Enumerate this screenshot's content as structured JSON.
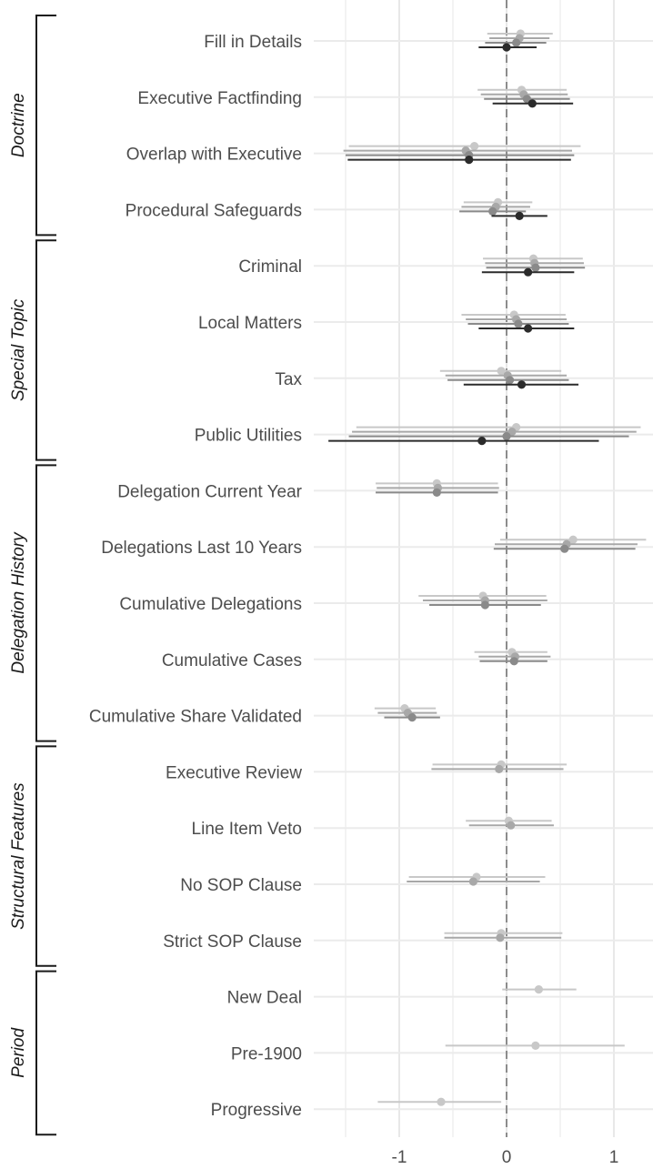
{
  "chart_data": {
    "type": "scatter",
    "subtype": "coefficient-plot",
    "title": "",
    "xlabel": "",
    "ylabel": "",
    "xlim": [
      -1.8,
      1.35
    ],
    "x_ticks": [
      -1,
      0,
      1
    ],
    "x_tick_labels": [
      "-1",
      "0",
      "1"
    ],
    "reference_line": 0,
    "grid": true,
    "legend": "none",
    "shade_colors": [
      "#c8c8c8",
      "#a8a8a8",
      "#8a8a8a",
      "#2b2b2b"
    ],
    "groups": [
      {
        "name": "Doctrine",
        "rows": [
          {
            "label": "Fill in Details",
            "estimates": [
              {
                "shade": 0,
                "value": 0.13,
                "low": -0.18,
                "high": 0.43
              },
              {
                "shade": 1,
                "value": 0.12,
                "low": -0.16,
                "high": 0.4
              },
              {
                "shade": 2,
                "value": 0.09,
                "low": -0.2,
                "high": 0.37
              },
              {
                "shade": 3,
                "value": 0.0,
                "low": -0.26,
                "high": 0.28
              }
            ]
          },
          {
            "label": "Executive Factfinding",
            "estimates": [
              {
                "shade": 0,
                "value": 0.14,
                "low": -0.27,
                "high": 0.56
              },
              {
                "shade": 1,
                "value": 0.16,
                "low": -0.24,
                "high": 0.57
              },
              {
                "shade": 2,
                "value": 0.19,
                "low": -0.21,
                "high": 0.59
              },
              {
                "shade": 3,
                "value": 0.24,
                "low": -0.13,
                "high": 0.62
              }
            ]
          },
          {
            "label": "Overlap with Executive",
            "estimates": [
              {
                "shade": 0,
                "value": -0.3,
                "low": -1.47,
                "high": 0.69
              },
              {
                "shade": 1,
                "value": -0.38,
                "low": -1.52,
                "high": 0.61
              },
              {
                "shade": 2,
                "value": -0.35,
                "low": -1.5,
                "high": 0.63
              },
              {
                "shade": 3,
                "value": -0.35,
                "low": -1.48,
                "high": 0.6
              }
            ]
          },
          {
            "label": "Procedural Safeguards",
            "estimates": [
              {
                "shade": 0,
                "value": -0.08,
                "low": -0.4,
                "high": 0.24
              },
              {
                "shade": 1,
                "value": -0.1,
                "low": -0.42,
                "high": 0.22
              },
              {
                "shade": 2,
                "value": -0.13,
                "low": -0.44,
                "high": 0.18
              },
              {
                "shade": 3,
                "value": 0.12,
                "low": -0.14,
                "high": 0.38
              }
            ]
          }
        ]
      },
      {
        "name": "Special Topic",
        "rows": [
          {
            "label": "Criminal",
            "estimates": [
              {
                "shade": 0,
                "value": 0.25,
                "low": -0.22,
                "high": 0.71
              },
              {
                "shade": 1,
                "value": 0.26,
                "low": -0.2,
                "high": 0.72
              },
              {
                "shade": 2,
                "value": 0.27,
                "low": -0.19,
                "high": 0.73
              },
              {
                "shade": 3,
                "value": 0.2,
                "low": -0.23,
                "high": 0.63
              }
            ]
          },
          {
            "label": "Local Matters",
            "estimates": [
              {
                "shade": 0,
                "value": 0.07,
                "low": -0.42,
                "high": 0.55
              },
              {
                "shade": 1,
                "value": 0.09,
                "low": -0.38,
                "high": 0.56
              },
              {
                "shade": 2,
                "value": 0.11,
                "low": -0.36,
                "high": 0.58
              },
              {
                "shade": 3,
                "value": 0.2,
                "low": -0.26,
                "high": 0.63
              }
            ]
          },
          {
            "label": "Tax",
            "estimates": [
              {
                "shade": 0,
                "value": -0.05,
                "low": -0.62,
                "high": 0.51
              },
              {
                "shade": 1,
                "value": 0.01,
                "low": -0.57,
                "high": 0.56
              },
              {
                "shade": 2,
                "value": 0.03,
                "low": -0.55,
                "high": 0.58
              },
              {
                "shade": 3,
                "value": 0.14,
                "low": -0.4,
                "high": 0.67
              }
            ]
          },
          {
            "label": "Public Utilities",
            "estimates": [
              {
                "shade": 0,
                "value": 0.09,
                "low": -1.4,
                "high": 1.25
              },
              {
                "shade": 1,
                "value": 0.05,
                "low": -1.44,
                "high": 1.21
              },
              {
                "shade": 2,
                "value": 0.0,
                "low": -1.47,
                "high": 1.14
              },
              {
                "shade": 3,
                "value": -0.23,
                "low": -1.66,
                "high": 0.86
              }
            ]
          }
        ]
      },
      {
        "name": "Delegation History",
        "rows": [
          {
            "label": "Delegation Current Year",
            "estimates": [
              {
                "shade": 0,
                "value": -0.65,
                "low": -1.22,
                "high": -0.08
              },
              {
                "shade": 1,
                "value": -0.64,
                "low": -1.21,
                "high": -0.07
              },
              {
                "shade": 2,
                "value": -0.65,
                "low": -1.22,
                "high": -0.08
              }
            ]
          },
          {
            "label": "Delegations Last 10 Years",
            "estimates": [
              {
                "shade": 0,
                "value": 0.62,
                "low": -0.06,
                "high": 1.3
              },
              {
                "shade": 1,
                "value": 0.56,
                "low": -0.11,
                "high": 1.22
              },
              {
                "shade": 2,
                "value": 0.54,
                "low": -0.12,
                "high": 1.2
              }
            ]
          },
          {
            "label": "Cumulative Delegations",
            "estimates": [
              {
                "shade": 0,
                "value": -0.22,
                "low": -0.82,
                "high": 0.37
              },
              {
                "shade": 1,
                "value": -0.2,
                "low": -0.78,
                "high": 0.38
              },
              {
                "shade": 2,
                "value": -0.2,
                "low": -0.72,
                "high": 0.32
              }
            ]
          },
          {
            "label": "Cumulative Cases",
            "estimates": [
              {
                "shade": 0,
                "value": 0.05,
                "low": -0.3,
                "high": 0.38
              },
              {
                "shade": 1,
                "value": 0.08,
                "low": -0.26,
                "high": 0.41
              },
              {
                "shade": 2,
                "value": 0.07,
                "low": -0.25,
                "high": 0.38
              }
            ]
          },
          {
            "label": "Cumulative Share Validated",
            "estimates": [
              {
                "shade": 0,
                "value": -0.95,
                "low": -1.23,
                "high": -0.66
              },
              {
                "shade": 1,
                "value": -0.92,
                "low": -1.2,
                "high": -0.65
              },
              {
                "shade": 2,
                "value": -0.88,
                "low": -1.14,
                "high": -0.62
              }
            ]
          }
        ]
      },
      {
        "name": "Structural Features",
        "rows": [
          {
            "label": "Executive Review",
            "estimates": [
              {
                "shade": 0,
                "value": -0.05,
                "low": -0.69,
                "high": 0.56
              },
              {
                "shade": 1,
                "value": -0.07,
                "low": -0.7,
                "high": 0.53
              }
            ]
          },
          {
            "label": "Line Item Veto",
            "estimates": [
              {
                "shade": 0,
                "value": 0.02,
                "low": -0.38,
                "high": 0.42
              },
              {
                "shade": 1,
                "value": 0.04,
                "low": -0.35,
                "high": 0.44
              }
            ]
          },
          {
            "label": "No SOP Clause",
            "estimates": [
              {
                "shade": 0,
                "value": -0.28,
                "low": -0.91,
                "high": 0.36
              },
              {
                "shade": 1,
                "value": -0.31,
                "low": -0.93,
                "high": 0.31
              }
            ]
          },
          {
            "label": "Strict SOP Clause",
            "estimates": [
              {
                "shade": 0,
                "value": -0.05,
                "low": -0.58,
                "high": 0.52
              },
              {
                "shade": 1,
                "value": -0.06,
                "low": -0.58,
                "high": 0.51
              }
            ]
          }
        ]
      },
      {
        "name": "Period",
        "rows": [
          {
            "label": "New Deal",
            "estimates": [
              {
                "shade": 0,
                "value": 0.3,
                "low": -0.04,
                "high": 0.65
              }
            ]
          },
          {
            "label": "Pre-1900",
            "estimates": [
              {
                "shade": 0,
                "value": 0.27,
                "low": -0.57,
                "high": 1.1
              }
            ]
          },
          {
            "label": "Progressive",
            "estimates": [
              {
                "shade": 0,
                "value": -0.61,
                "low": -1.2,
                "high": -0.05
              }
            ]
          }
        ]
      }
    ]
  }
}
